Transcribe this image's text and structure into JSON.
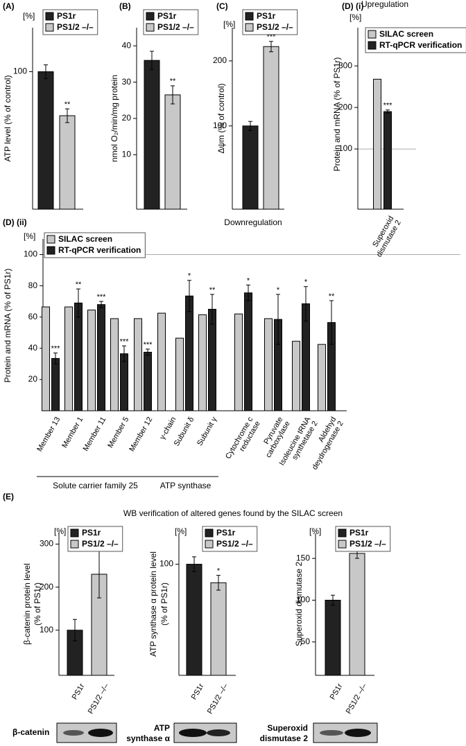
{
  "chart_data": [
    {
      "type": "bar",
      "label": "(A)",
      "unit_label": "[%]",
      "y_label": "ATP level (% of control)",
      "ylim": [
        0,
        132
      ],
      "yticks": [
        100
      ],
      "series": [
        {
          "name": "PS1r",
          "color": "#222222",
          "values": [
            100
          ],
          "errors": [
            5
          ],
          "annotations": [
            null
          ]
        },
        {
          "name": "PS1/2 –/–",
          "color": "#c8c8c8",
          "values": [
            68
          ],
          "errors": [
            5
          ],
          "annotations": [
            "**"
          ]
        }
      ]
    },
    {
      "type": "bar",
      "label": "(B)",
      "y_label": "nmol O₂/min/mg protein",
      "ylim": [
        -5,
        45
      ],
      "yticks": [
        10,
        20,
        30,
        40
      ],
      "series": [
        {
          "name": "PS1r",
          "color": "#222222",
          "values": [
            36
          ],
          "errors": [
            2.5
          ],
          "annotations": [
            null
          ]
        },
        {
          "name": "PS1/2 –/–",
          "color": "#c8c8c8",
          "values": [
            26.5
          ],
          "errors": [
            2.5
          ],
          "annotations": [
            "**"
          ]
        }
      ]
    },
    {
      "type": "bar",
      "label": "(C)",
      "unit_label": "[%]",
      "y_label": "Δψm (% of control)",
      "ylim": [
        -28,
        251
      ],
      "yticks": [
        100,
        200
      ],
      "series": [
        {
          "name": "PS1r",
          "color": "#222222",
          "values": [
            100
          ],
          "errors": [
            7
          ],
          "annotations": [
            null
          ]
        },
        {
          "name": "PS1/2 –/–",
          "color": "#c8c8c8",
          "values": [
            222
          ],
          "errors": [
            8
          ],
          "annotations": [
            "***"
          ]
        }
      ]
    },
    {
      "type": "bar",
      "label": "(D) (i)",
      "title": "Upregulation",
      "unit_label": "[%]",
      "y_label": "Protein and mRNA (% of PS1r)",
      "categories": [
        "Superoxid dismutase 2"
      ],
      "ylim": [
        -45,
        392
      ],
      "yticks": [
        100,
        200,
        300
      ],
      "hline": 100,
      "series": [
        {
          "name": "SILAC screen",
          "color": "#c8c8c8",
          "values": [
            268
          ],
          "errors": [
            null
          ],
          "annotations": [
            null
          ]
        },
        {
          "name": "RT-qPCR verification",
          "color": "#222222",
          "values": [
            190
          ],
          "errors": [
            4
          ],
          "annotations": [
            "***"
          ]
        }
      ]
    },
    {
      "type": "bar",
      "label": "(D) (ii)",
      "title": "Downregulation",
      "unit_label": "[%]",
      "y_label": "Protein and mRNA (% of PS1r)",
      "categories": [
        "Member 13",
        "Member 1",
        "Member 11",
        "Member 5",
        "Member 12",
        "γ-chain",
        "Subunit δ",
        "Subunit γ",
        "Cytochrome c reductase",
        "Pyruvate carboxylase",
        "Isoleucine tRNA synthetase 2",
        "Aldehyd deydrogenase 2"
      ],
      "groups": [
        "Solute carrier family 25",
        "ATP synthase"
      ],
      "ylim": [
        0,
        110
      ],
      "yticks": [
        20,
        40,
        60,
        80,
        100
      ],
      "hline": 100,
      "series": [
        {
          "name": "SILAC screen",
          "color": "#c8c8c8",
          "values": [
            66.5,
            66.5,
            64.5,
            59,
            59,
            62.5,
            46.5,
            61.5,
            62,
            59,
            44.5,
            42.5
          ]
        },
        {
          "name": "RT-qPCR verification",
          "color": "#222222",
          "values": [
            33.5,
            69,
            68,
            36.5,
            37.5,
            null,
            73.5,
            65,
            75.5,
            58.5,
            68.5,
            56.5
          ],
          "errors": [
            3.5,
            9,
            2,
            5,
            2,
            null,
            10,
            9.5,
            5,
            16,
            11,
            14
          ],
          "annotations": [
            "***",
            "**",
            "***",
            "***",
            "***",
            null,
            "*",
            "**",
            "*",
            "*",
            "*",
            "**"
          ]
        }
      ]
    },
    {
      "type": "bar",
      "label": "(E)",
      "title": "WB verification of altered genes found by the SILAC screen",
      "unit_label": "[%]",
      "y_label": [
        "β-catenin protein level",
        "(% of PS1r)"
      ],
      "ylim": [
        -5,
        325
      ],
      "yticks": [
        100,
        200,
        300
      ],
      "blot_label": [
        "β-catenin"
      ],
      "series": [
        {
          "name": "PS1r",
          "color": "#222222",
          "values": [
            100
          ],
          "errors": [
            25
          ],
          "annotations": [
            null
          ]
        },
        {
          "name": "PS1/2 –/–",
          "color": "#c8c8c8",
          "values": [
            230
          ],
          "errors": [
            55
          ],
          "annotations": [
            "**"
          ]
        }
      ]
    },
    {
      "type": "bar",
      "unit_label": "[%]",
      "y_label": [
        "ATP synthase α protein level",
        "(% of PS1r)"
      ],
      "ylim": [
        10,
        125
      ],
      "yticks": [
        100
      ],
      "blot_label": [
        "ATP",
        "synthase α"
      ],
      "series": [
        {
          "name": "PS1r",
          "color": "#222222",
          "values": [
            100
          ],
          "errors": [
            6
          ],
          "annotations": [
            null
          ]
        },
        {
          "name": "PS1/2 –/–",
          "color": "#c8c8c8",
          "values": [
            85
          ],
          "errors": [
            6
          ],
          "annotations": [
            "*"
          ]
        }
      ]
    },
    {
      "type": "bar",
      "unit_label": "[%]",
      "y_label": [
        "Superoxid dismutase 2"
      ],
      "ylim": [
        10,
        180
      ],
      "yticks": [
        50,
        100,
        150
      ],
      "blot_label": [
        "Superoxid",
        "dismutase 2"
      ],
      "series": [
        {
          "name": "PS1r",
          "color": "#222222",
          "values": [
            100
          ],
          "errors": [
            6
          ],
          "annotations": [
            null
          ]
        },
        {
          "name": "PS1/2 –/–",
          "color": "#c8c8c8",
          "values": [
            156
          ],
          "errors": [
            6
          ],
          "annotations": [
            "***"
          ]
        }
      ]
    }
  ]
}
